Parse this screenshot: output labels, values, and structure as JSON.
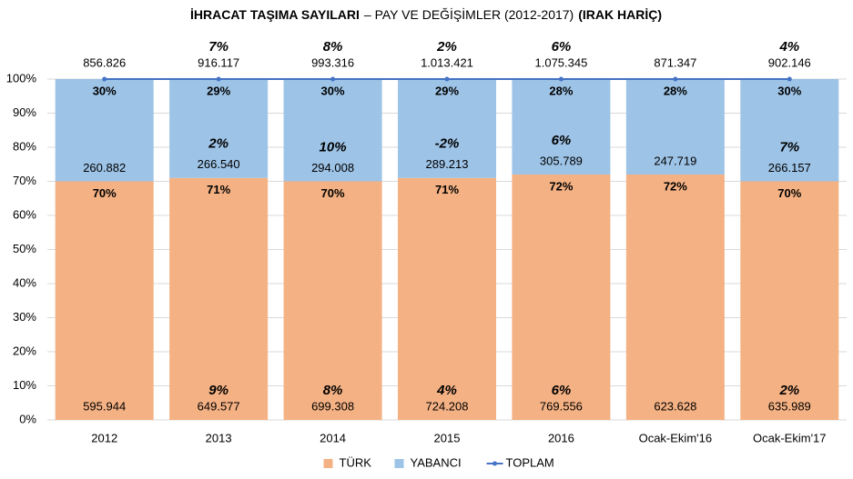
{
  "chart_data": {
    "type": "bar",
    "stacked": true,
    "title": [
      "İHRACAT TAŞIMA SAYILARI",
      "– PAY VE DEĞİŞİMLER (2012-2017)",
      "(IRAK HARİÇ)"
    ],
    "categories": [
      "2012",
      "2013",
      "2014",
      "2015",
      "2016",
      "Ocak-Ekim'16",
      "Ocak-Ekim'17"
    ],
    "series": [
      {
        "name": "TÜRK",
        "color": "#f4b183",
        "values": [
          70,
          71,
          70,
          71,
          72,
          72,
          70
        ],
        "value_labels": [
          "70%",
          "71%",
          "70%",
          "71%",
          "72%",
          "72%",
          "70%"
        ],
        "count_labels": [
          "595.944",
          "649.577",
          "699.308",
          "724.208",
          "769.556",
          "623.628",
          "635.989"
        ],
        "change_labels": [
          null,
          "9%",
          "8%",
          "4%",
          "6%",
          null,
          "2%"
        ]
      },
      {
        "name": "YABANCI",
        "color": "#9dc3e6",
        "values": [
          30,
          29,
          30,
          29,
          28,
          28,
          30
        ],
        "value_labels": [
          "30%",
          "29%",
          "30%",
          "29%",
          "28%",
          "28%",
          "30%"
        ],
        "count_labels": [
          "260.882",
          "266.540",
          "294.008",
          "289.213",
          "305.789",
          "247.719",
          "266.157"
        ],
        "change_labels": [
          null,
          "2%",
          "10%",
          "-2%",
          "6%",
          null,
          "7%"
        ]
      },
      {
        "name": "TOPLAM",
        "type": "line",
        "color": "#4472c4",
        "values": [
          100,
          100,
          100,
          100,
          100,
          100,
          100
        ],
        "count_labels": [
          "856.826",
          "916.117",
          "993.316",
          "1.013.421",
          "1.075.345",
          "871.347",
          "902.146"
        ],
        "change_labels": [
          null,
          "7%",
          "8%",
          "2%",
          "6%",
          null,
          "4%"
        ]
      }
    ],
    "ylim": [
      0,
      100
    ],
    "yticks": [
      {
        "value": 0,
        "label": "0%"
      },
      {
        "value": 10,
        "label": "10%"
      },
      {
        "value": 20,
        "label": "20%"
      },
      {
        "value": 30,
        "label": "30%"
      },
      {
        "value": 40,
        "label": "40%"
      },
      {
        "value": 50,
        "label": "50%"
      },
      {
        "value": 60,
        "label": "60%"
      },
      {
        "value": 70,
        "label": "70%"
      },
      {
        "value": 80,
        "label": "80%"
      },
      {
        "value": 90,
        "label": "90%"
      },
      {
        "value": 100,
        "label": "100%"
      }
    ],
    "grid": true,
    "legend": "bottom",
    "change_color": "#c00000"
  }
}
